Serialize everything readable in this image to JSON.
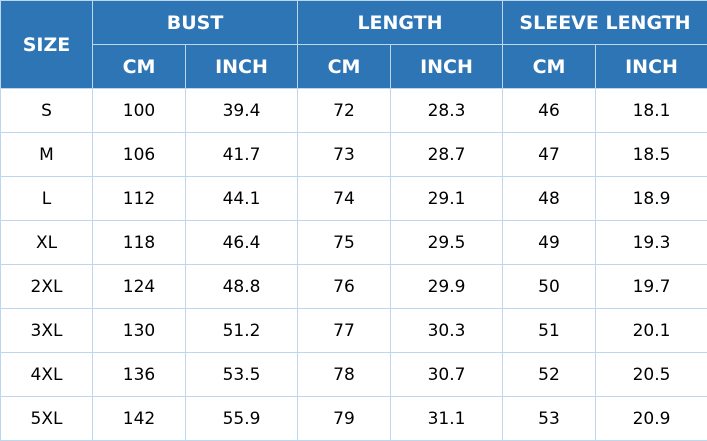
{
  "colors": {
    "header_bg": "#2e75b6",
    "header_text": "#ffffff",
    "border": "#bdd7ee"
  },
  "header": {
    "size": "SIZE",
    "groups": [
      "BUST",
      "LENGTH",
      "SLEEVE LENGTH"
    ],
    "units": [
      "CM",
      "INCH",
      "CM",
      "INCH",
      "CM",
      "INCH"
    ]
  },
  "rows": [
    [
      "S",
      "100",
      "39.4",
      "72",
      "28.3",
      "46",
      "18.1"
    ],
    [
      "M",
      "106",
      "41.7",
      "73",
      "28.7",
      "47",
      "18.5"
    ],
    [
      "L",
      "112",
      "44.1",
      "74",
      "29.1",
      "48",
      "18.9"
    ],
    [
      "XL",
      "118",
      "46.4",
      "75",
      "29.5",
      "49",
      "19.3"
    ],
    [
      "2XL",
      "124",
      "48.8",
      "76",
      "29.9",
      "50",
      "19.7"
    ],
    [
      "3XL",
      "130",
      "51.2",
      "77",
      "30.3",
      "51",
      "20.1"
    ],
    [
      "4XL",
      "136",
      "53.5",
      "78",
      "30.7",
      "52",
      "20.5"
    ],
    [
      "5XL",
      "142",
      "55.9",
      "79",
      "31.1",
      "53",
      "20.9"
    ]
  ]
}
